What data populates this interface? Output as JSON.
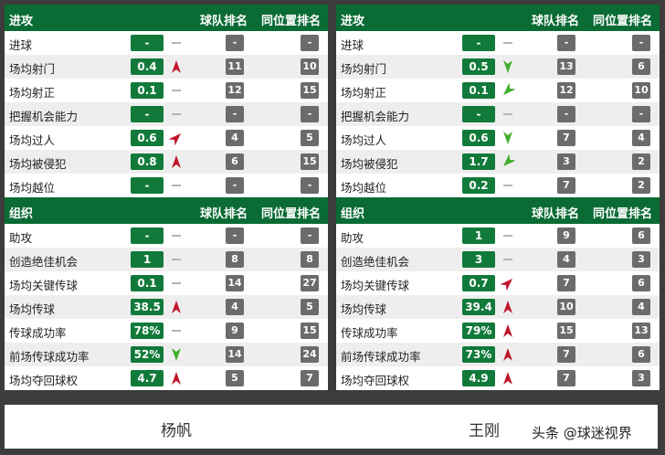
{
  "colors": {
    "header_bg": "#0a6b34",
    "value_bg": "#117a3a",
    "rank_bg": "#6b6b6b",
    "arrow_up": "#c0162d",
    "arrow_down": "#3fae2a",
    "flat_dash": "#b5b5b5"
  },
  "players": [
    {
      "name": "杨帆",
      "sections": [
        {
          "title": "进攻",
          "col1": "球队排名",
          "col2": "同位置排名",
          "rows": [
            {
              "label": "进球",
              "value": "-",
              "trend": "flat",
              "team_rank": "-",
              "pos_rank": "-"
            },
            {
              "label": "场均射门",
              "value": "0.4",
              "trend": "up",
              "team_rank": "11",
              "pos_rank": "10"
            },
            {
              "label": "场均射正",
              "value": "0.1",
              "trend": "flat",
              "team_rank": "12",
              "pos_rank": "15"
            },
            {
              "label": "把握机会能力",
              "value": "-",
              "trend": "flat",
              "team_rank": "-",
              "pos_rank": "-"
            },
            {
              "label": "场均过人",
              "value": "0.6",
              "trend": "up-right",
              "team_rank": "4",
              "pos_rank": "5"
            },
            {
              "label": "场均被侵犯",
              "value": "0.8",
              "trend": "up",
              "team_rank": "6",
              "pos_rank": "15"
            },
            {
              "label": "场均越位",
              "value": "-",
              "trend": "flat",
              "team_rank": "-",
              "pos_rank": "-"
            }
          ]
        },
        {
          "title": "组织",
          "col1": "球队排名",
          "col2": "同位置排名",
          "rows": [
            {
              "label": "助攻",
              "value": "-",
              "trend": "flat",
              "team_rank": "-",
              "pos_rank": "-"
            },
            {
              "label": "创造绝佳机会",
              "value": "1",
              "trend": "flat",
              "team_rank": "8",
              "pos_rank": "8"
            },
            {
              "label": "场均关键传球",
              "value": "0.1",
              "trend": "flat",
              "team_rank": "14",
              "pos_rank": "27"
            },
            {
              "label": "场均传球",
              "value": "38.5",
              "trend": "up",
              "team_rank": "4",
              "pos_rank": "5"
            },
            {
              "label": "传球成功率",
              "value": "78%",
              "trend": "flat",
              "team_rank": "9",
              "pos_rank": "15"
            },
            {
              "label": "前场传球成功率",
              "value": "52%",
              "trend": "down",
              "team_rank": "14",
              "pos_rank": "24"
            },
            {
              "label": "场均夺回球权",
              "value": "4.7",
              "trend": "up",
              "team_rank": "5",
              "pos_rank": "7"
            }
          ]
        }
      ]
    },
    {
      "name": "王刚",
      "sections": [
        {
          "title": "进攻",
          "col1": "球队排名",
          "col2": "同位置排名",
          "rows": [
            {
              "label": "进球",
              "value": "-",
              "trend": "flat",
              "team_rank": "-",
              "pos_rank": "-"
            },
            {
              "label": "场均射门",
              "value": "0.5",
              "trend": "down",
              "team_rank": "13",
              "pos_rank": "6"
            },
            {
              "label": "场均射正",
              "value": "0.1",
              "trend": "down-left",
              "team_rank": "12",
              "pos_rank": "10"
            },
            {
              "label": "把握机会能力",
              "value": "-",
              "trend": "flat",
              "team_rank": "-",
              "pos_rank": "-"
            },
            {
              "label": "场均过人",
              "value": "0.6",
              "trend": "down",
              "team_rank": "7",
              "pos_rank": "4"
            },
            {
              "label": "场均被侵犯",
              "value": "1.7",
              "trend": "down-left",
              "team_rank": "3",
              "pos_rank": "2"
            },
            {
              "label": "场均越位",
              "value": "0.2",
              "trend": "flat",
              "team_rank": "7",
              "pos_rank": "2"
            }
          ]
        },
        {
          "title": "组织",
          "col1": "球队排名",
          "col2": "同位置排名",
          "rows": [
            {
              "label": "助攻",
              "value": "1",
              "trend": "flat",
              "team_rank": "9",
              "pos_rank": "6"
            },
            {
              "label": "创造绝佳机会",
              "value": "3",
              "trend": "flat",
              "team_rank": "4",
              "pos_rank": "3"
            },
            {
              "label": "场均关键传球",
              "value": "0.7",
              "trend": "up-right",
              "team_rank": "7",
              "pos_rank": "6"
            },
            {
              "label": "场均传球",
              "value": "39.4",
              "trend": "up",
              "team_rank": "10",
              "pos_rank": "4"
            },
            {
              "label": "传球成功率",
              "value": "79%",
              "trend": "up",
              "team_rank": "15",
              "pos_rank": "13"
            },
            {
              "label": "前场传球成功率",
              "value": "73%",
              "trend": "up",
              "team_rank": "7",
              "pos_rank": "6"
            },
            {
              "label": "场均夺回球权",
              "value": "4.9",
              "trend": "up",
              "team_rank": "7",
              "pos_rank": "3"
            }
          ]
        }
      ]
    }
  ],
  "watermark": "头条 @球迷视界"
}
